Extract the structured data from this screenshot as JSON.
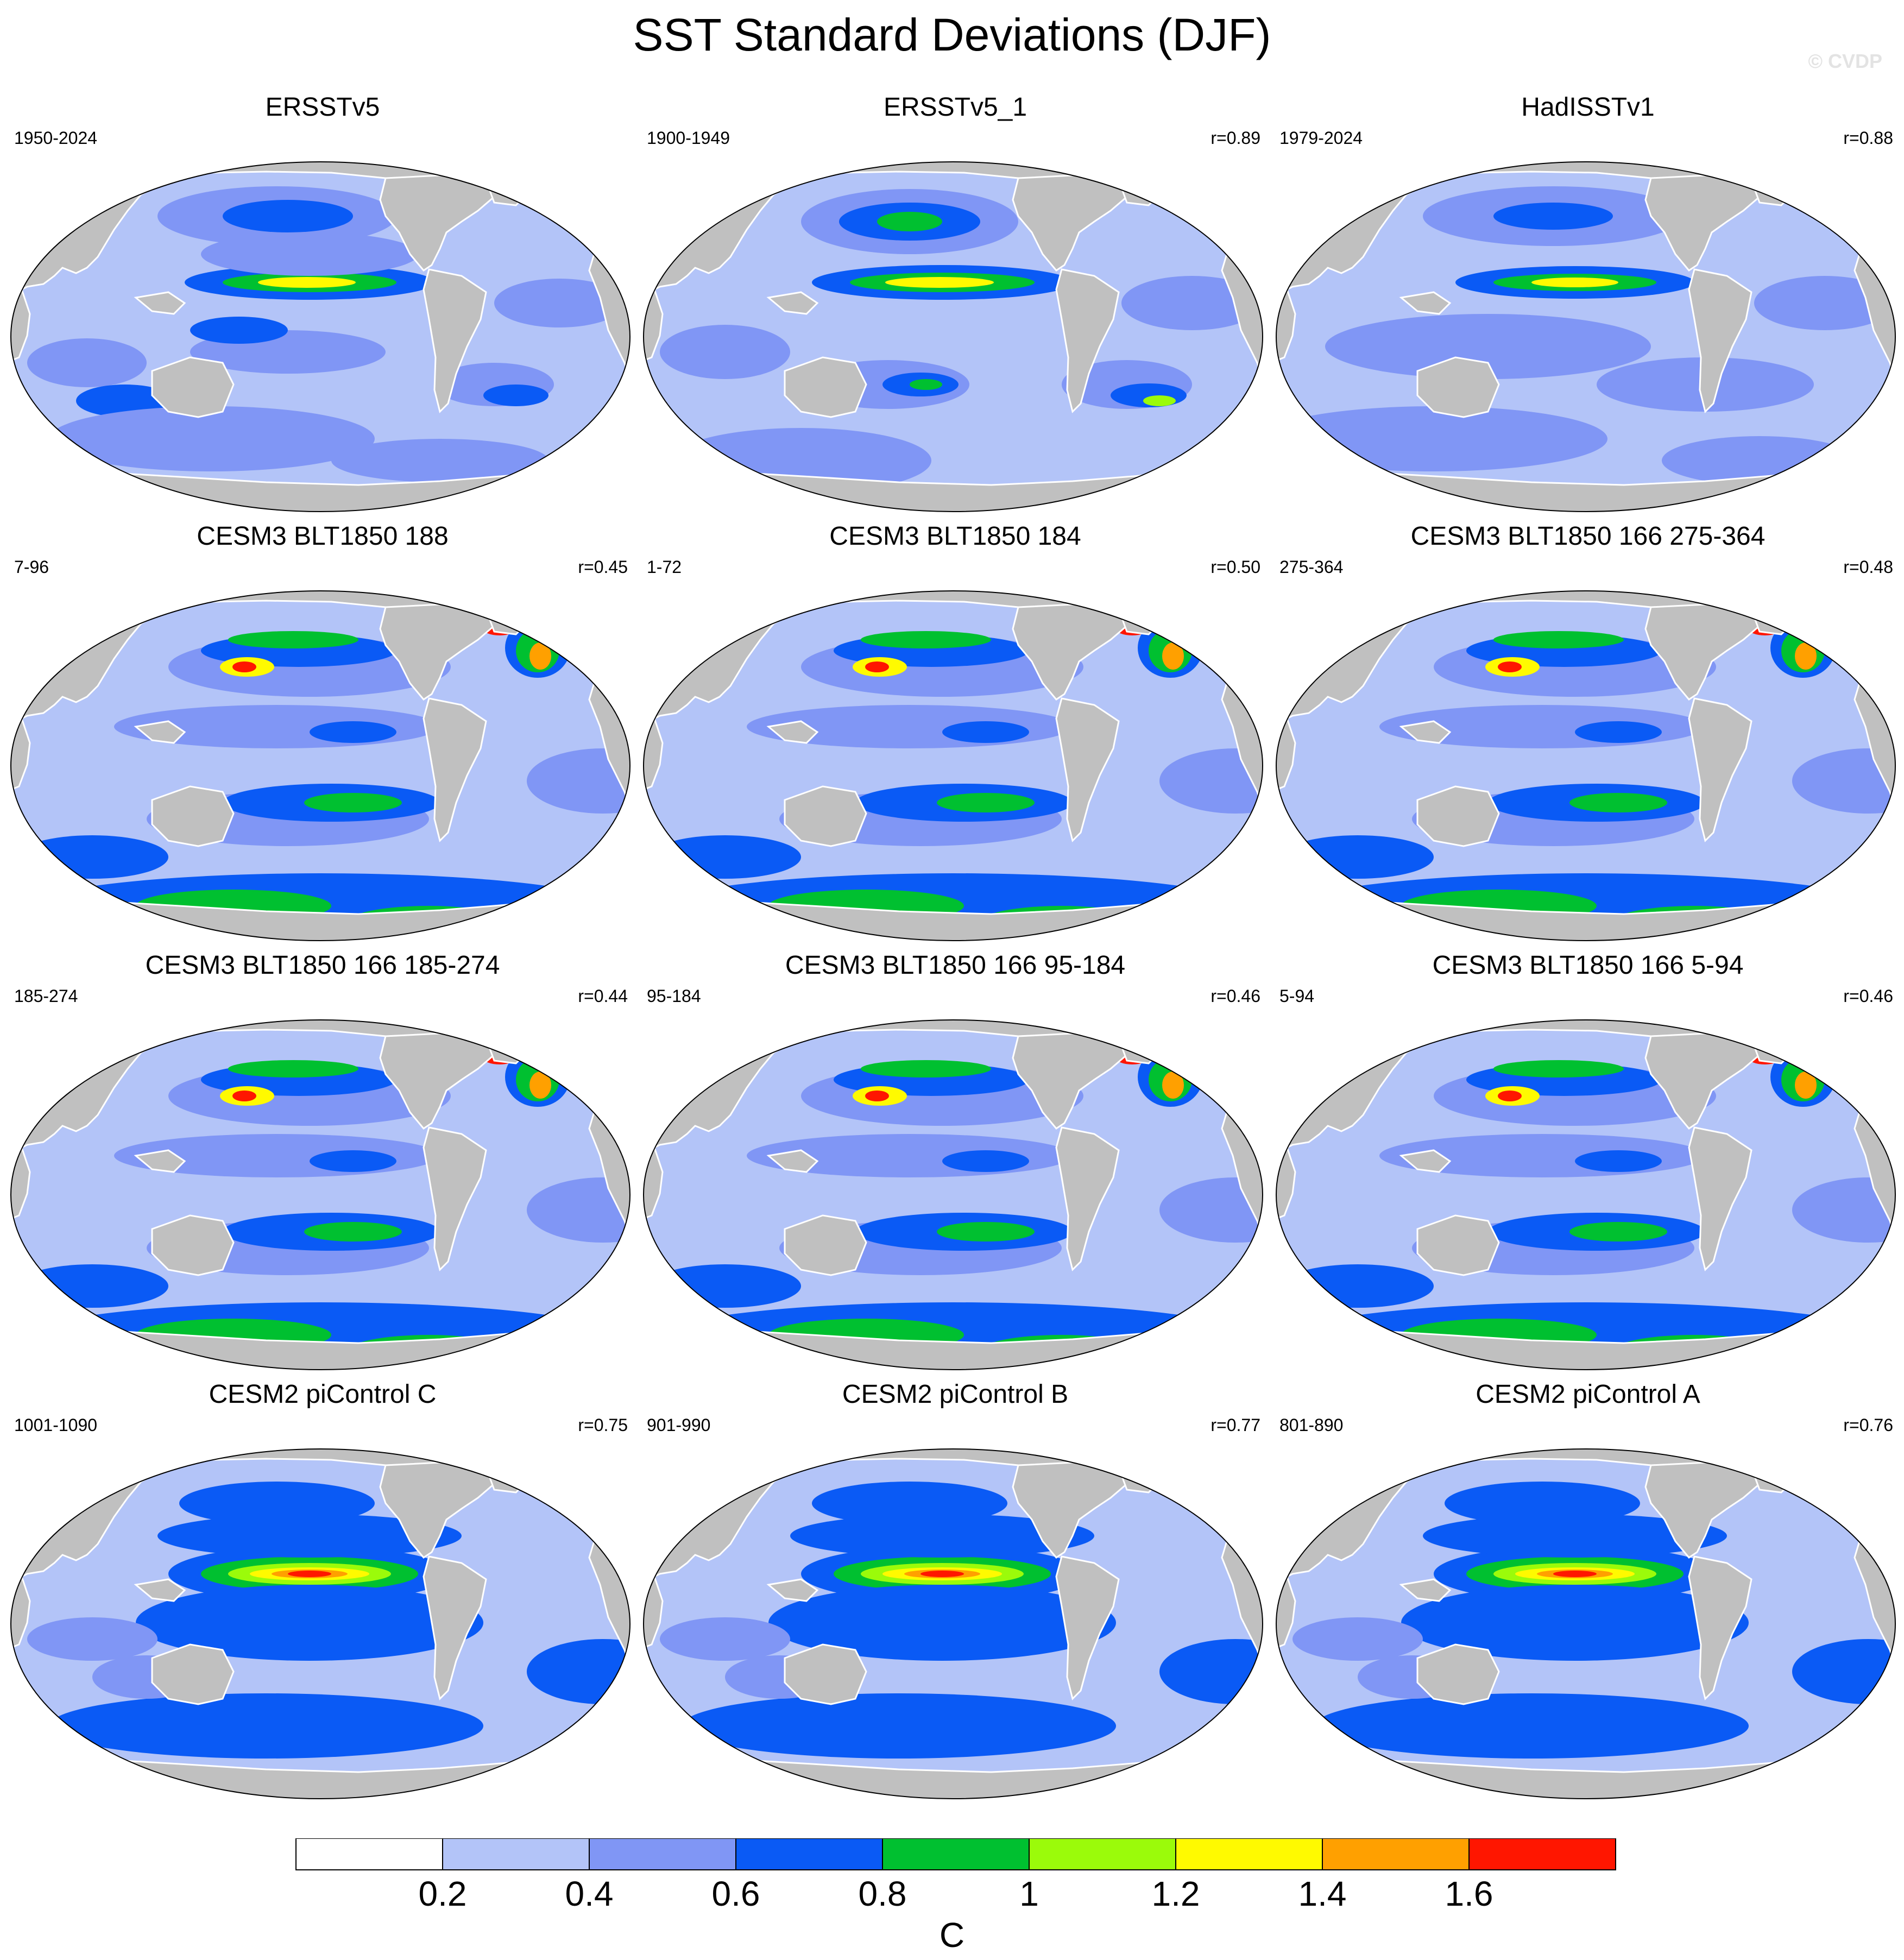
{
  "figure": {
    "title": "SST Standard Deviations (DJF)",
    "watermark": "© CVDP"
  },
  "panels": [
    {
      "title": "ERSSTv5",
      "period": "1950-2024",
      "corr": "",
      "style": "obs1"
    },
    {
      "title": "ERSSTv5_1",
      "period": "1900-1949",
      "corr": "r=0.89",
      "style": "obs2"
    },
    {
      "title": "HadISSTv1",
      "period": "1979-2024",
      "corr": "r=0.88",
      "style": "obs3"
    },
    {
      "title": "CESM3 BLT1850 188",
      "period": "7-96",
      "corr": "r=0.45",
      "style": "cesm3"
    },
    {
      "title": "CESM3 BLT1850 184",
      "period": "1-72",
      "corr": "r=0.50",
      "style": "cesm3"
    },
    {
      "title": "CESM3 BLT1850 166 275-364",
      "period": "275-364",
      "corr": "r=0.48",
      "style": "cesm3"
    },
    {
      "title": "CESM3 BLT1850 166 185-274",
      "period": "185-274",
      "corr": "r=0.44",
      "style": "cesm3"
    },
    {
      "title": "CESM3 BLT1850 166 95-184",
      "period": "95-184",
      "corr": "r=0.46",
      "style": "cesm3"
    },
    {
      "title": "CESM3 BLT1850 166 5-94",
      "period": "5-94",
      "corr": "r=0.46",
      "style": "cesm3"
    },
    {
      "title": "CESM2 piControl C",
      "period": "1001-1090",
      "corr": "r=0.75",
      "style": "cesm2"
    },
    {
      "title": "CESM2 piControl B",
      "period": "901-990",
      "corr": "r=0.77",
      "style": "cesm2"
    },
    {
      "title": "CESM2 piControl A",
      "period": "801-890",
      "corr": "r=0.76",
      "style": "cesm2"
    }
  ],
  "colorbar": {
    "colors": [
      "#ffffff",
      "#b3c4f8",
      "#8096f5",
      "#0a5af5",
      "#00c030",
      "#9bfb0a",
      "#fffa00",
      "#ffa000",
      "#ff1600"
    ],
    "labels": [
      "0.2",
      "0.4",
      "0.6",
      "0.8",
      "1",
      "1.2",
      "1.4",
      "1.6"
    ],
    "unit": "C"
  },
  "colors": {
    "land": "#c0c0c0",
    "ocean_base": "#b3c4f8"
  }
}
